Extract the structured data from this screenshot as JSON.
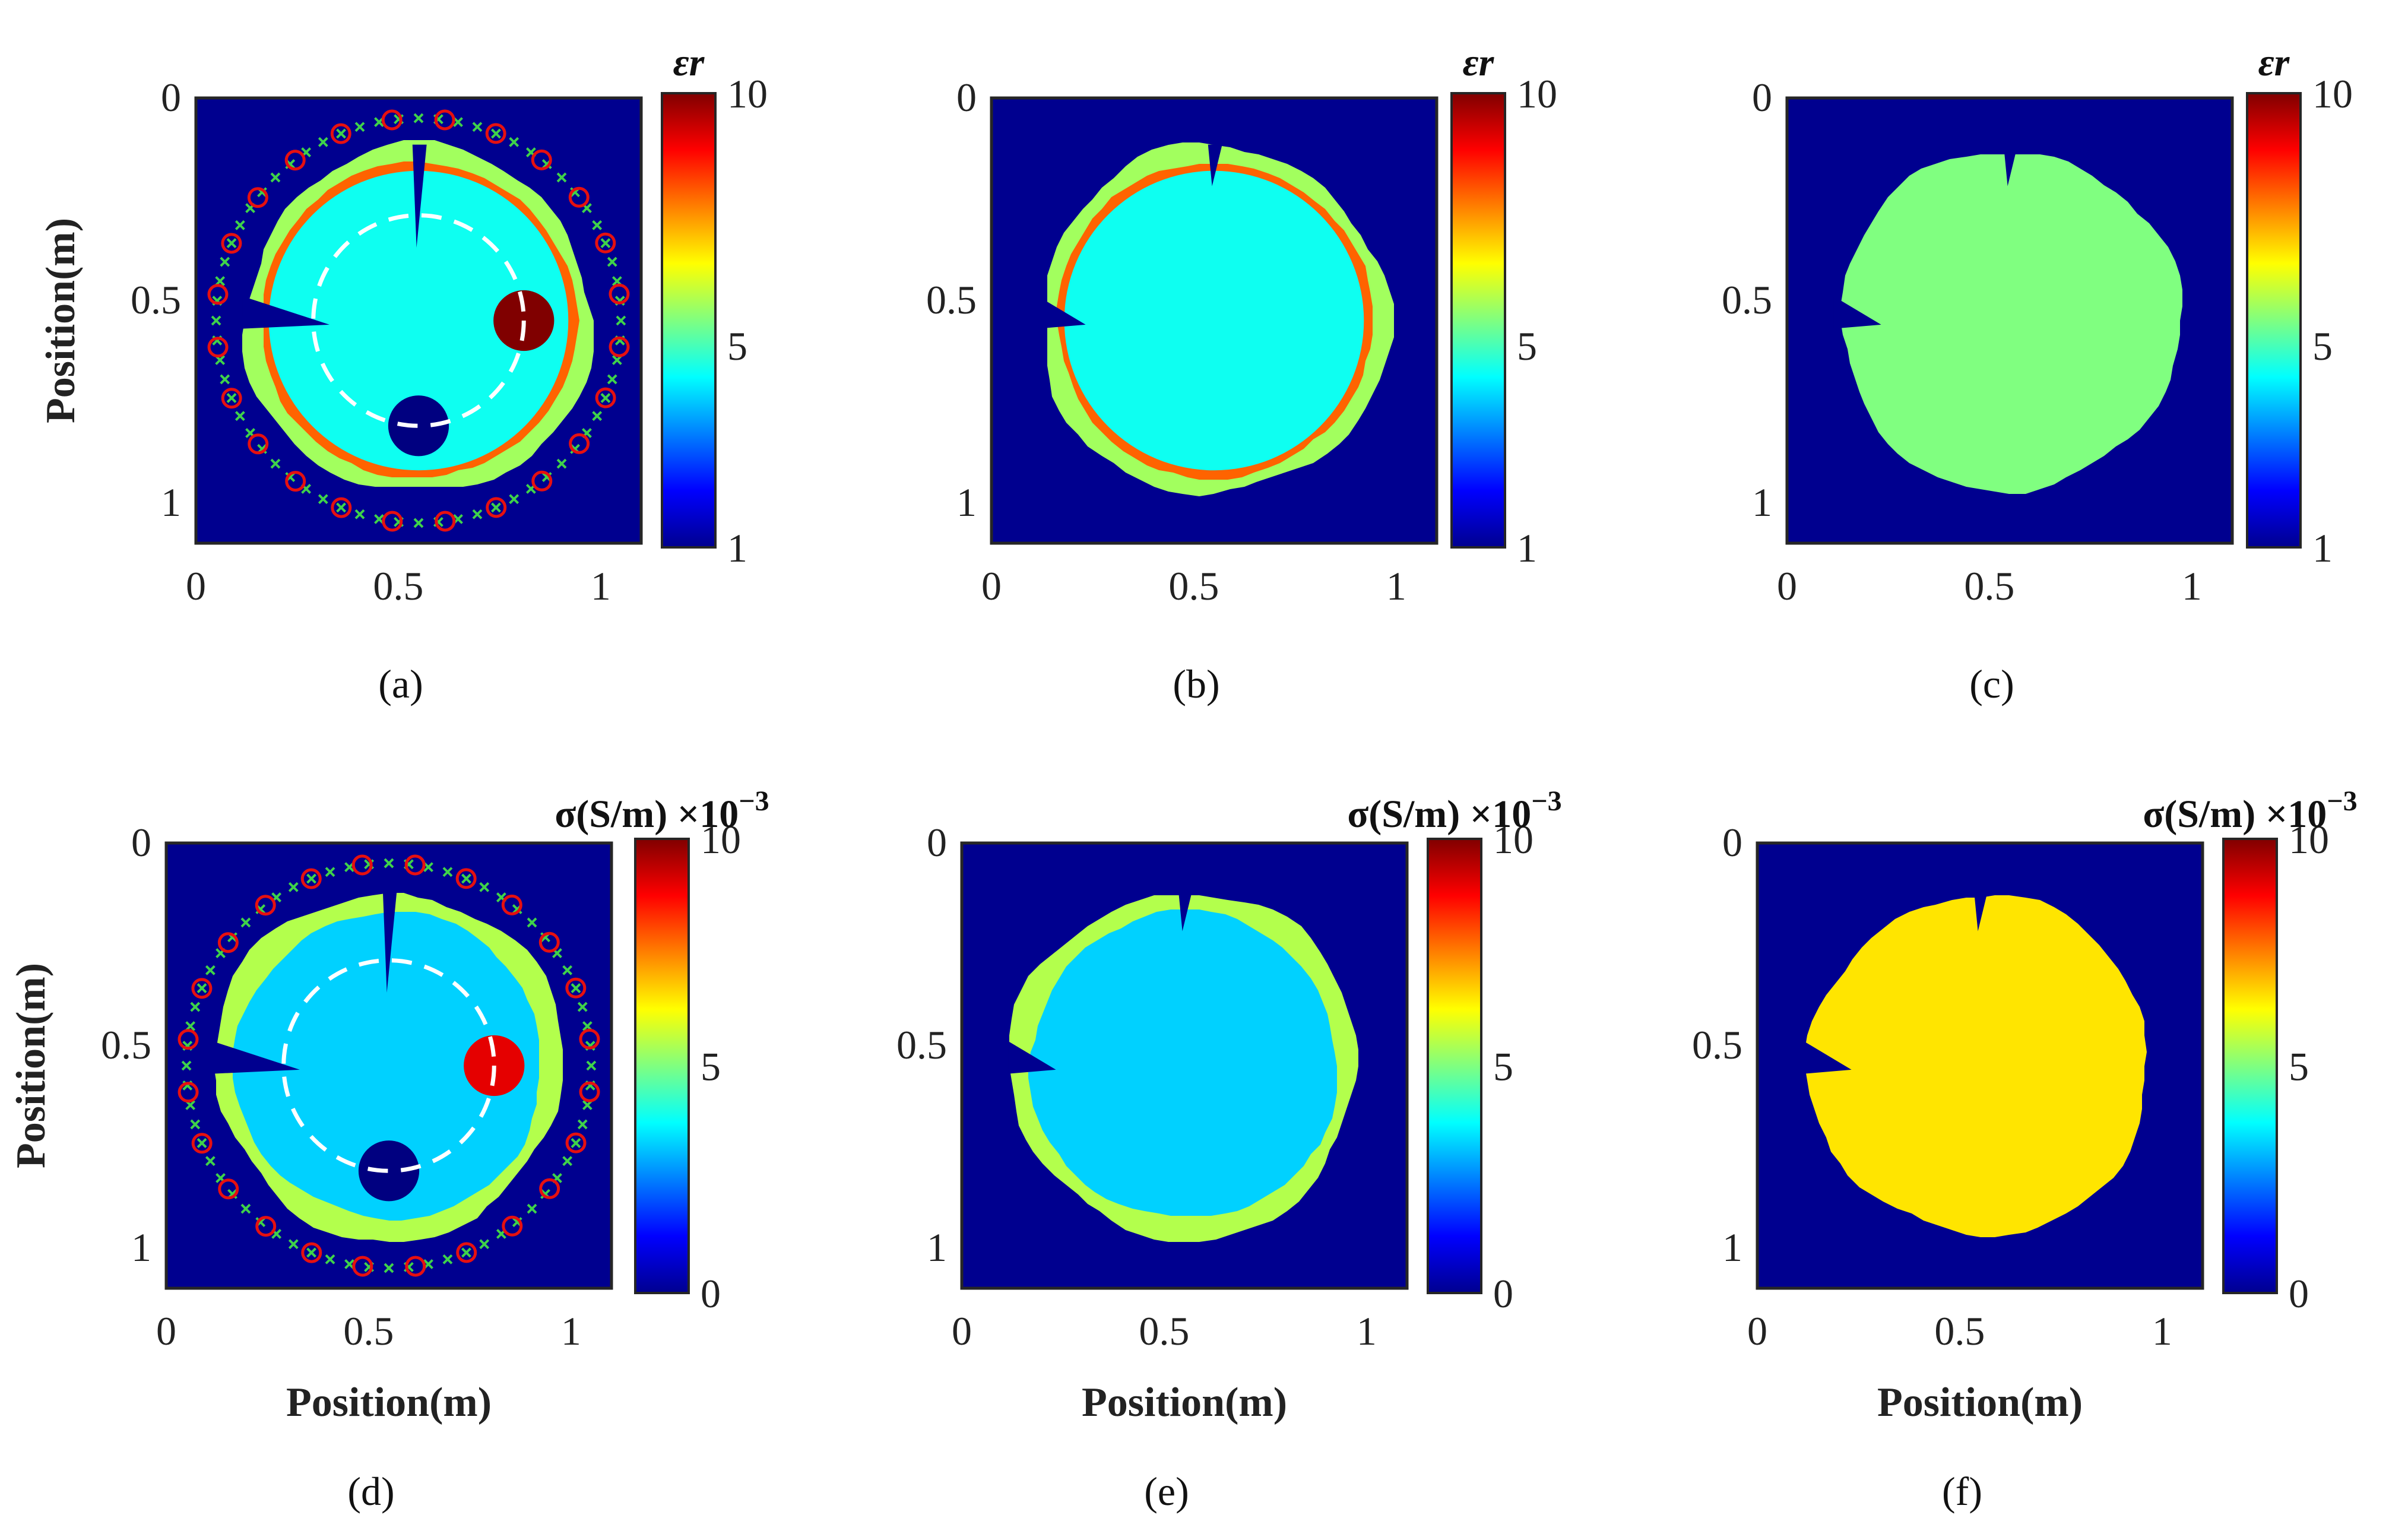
{
  "colors": {
    "background": "#00008f",
    "orange_ring": "#ff5a00",
    "inner_cyan": "#00d0ff",
    "green_shell": "#3ff0b6",
    "dark_red": "#800000",
    "sigma_inner": "#00aaff",
    "sigma_shell": "#46f0b0",
    "sigma_uniform": "#80ff80",
    "eps_uniform": "#48ffb4",
    "red": "#e61010"
  },
  "chart_data": [
    {
      "type": "heatmap",
      "panel": "a",
      "caption": "(a)",
      "quantity": "relative permittivity",
      "colorbar_title": "εr",
      "colorbar_ticks": [
        "10",
        "5",
        "1"
      ],
      "clim": [
        1,
        10
      ],
      "xlabel": "",
      "ylabel": "Position(m)",
      "x_ticks": [
        "0",
        "0.5",
        "1"
      ],
      "y_ticks": [
        "0",
        "0.5",
        "1"
      ],
      "xlim": [
        0,
        1.1
      ],
      "ylim": [
        0,
        1.1
      ],
      "regions": {
        "outer_shell": 5.8,
        "ring": 8.0,
        "interior": 4.5,
        "high_inclusion": 10,
        "low_inclusion": 1
      },
      "has_antennas": true,
      "has_dashed_circle": true
    },
    {
      "type": "heatmap",
      "panel": "b",
      "caption": "(b)",
      "quantity": "relative permittivity",
      "colorbar_title": "εr",
      "colorbar_ticks": [
        "10",
        "5",
        "1"
      ],
      "clim": [
        1,
        10
      ],
      "xlabel": "",
      "ylabel": "",
      "x_ticks": [
        "0",
        "0.5",
        "1"
      ],
      "y_ticks": [
        "0",
        "0.5",
        "1"
      ],
      "xlim": [
        0,
        1.1
      ],
      "ylim": [
        0,
        1.1
      ],
      "regions": {
        "outer_shell": 5.8,
        "ring": 8.0,
        "interior": 4.5
      }
    },
    {
      "type": "heatmap",
      "panel": "c",
      "caption": "(c)",
      "quantity": "relative permittivity",
      "colorbar_title": "εr",
      "colorbar_ticks": [
        "10",
        "5",
        "1"
      ],
      "clim": [
        1,
        10
      ],
      "xlabel": "",
      "ylabel": "",
      "x_ticks": [
        "0",
        "0.5",
        "1"
      ],
      "y_ticks": [
        "0",
        "0.5",
        "1"
      ],
      "xlim": [
        0,
        1.1
      ],
      "ylim": [
        0,
        1.1
      ],
      "regions": {
        "uniform": 5.5
      }
    },
    {
      "type": "heatmap",
      "panel": "d",
      "caption": "(d)",
      "quantity": "conductivity",
      "colorbar_title": "σ(S/m) ×10",
      "colorbar_exp": "−3",
      "colorbar_ticks": [
        "10",
        "5",
        "0"
      ],
      "clim": [
        0,
        10
      ],
      "xlabel": "Position(m)",
      "ylabel": "Position(m)",
      "x_ticks": [
        "0",
        "0.5",
        "1"
      ],
      "y_ticks": [
        "0",
        "0.5",
        "1"
      ],
      "xlim": [
        0,
        1.1
      ],
      "ylim": [
        0,
        1.1
      ],
      "regions": {
        "outer_shell": 5.5,
        "interior": 3.3,
        "high_inclusion": 9,
        "low_inclusion": 0
      },
      "has_antennas": true,
      "has_dashed_circle": true
    },
    {
      "type": "heatmap",
      "panel": "e",
      "caption": "(e)",
      "quantity": "conductivity",
      "colorbar_title": "σ(S/m) ×10",
      "colorbar_exp": "−3",
      "colorbar_ticks": [
        "10",
        "5",
        "0"
      ],
      "clim": [
        0,
        10
      ],
      "xlabel": "Position(m)",
      "ylabel": "",
      "x_ticks": [
        "0",
        "0.5",
        "1"
      ],
      "y_ticks": [
        "0",
        "0.5",
        "1"
      ],
      "xlim": [
        0,
        1.1
      ],
      "ylim": [
        0,
        1.1
      ],
      "regions": {
        "outer_shell": 5.5,
        "interior": 3.3
      }
    },
    {
      "type": "heatmap",
      "panel": "f",
      "caption": "(f)",
      "quantity": "conductivity",
      "colorbar_title": "σ(S/m) ×10",
      "colorbar_exp": "−3",
      "colorbar_ticks": [
        "10",
        "5",
        "0"
      ],
      "clim": [
        0,
        10
      ],
      "xlabel": "Position(m)",
      "ylabel": "",
      "x_ticks": [
        "0",
        "0.5",
        "1"
      ],
      "y_ticks": [
        "0",
        "0.5",
        "1"
      ],
      "xlim": [
        0,
        1.1
      ],
      "ylim": [
        0,
        1.1
      ],
      "regions": {
        "uniform": 6.5
      }
    }
  ]
}
